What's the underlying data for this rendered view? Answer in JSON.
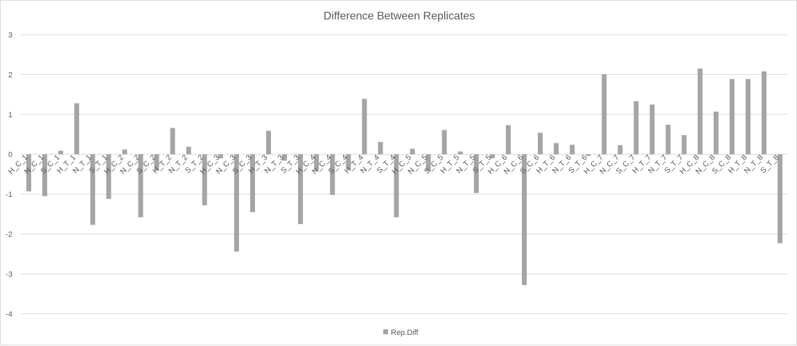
{
  "chart_data": {
    "type": "bar",
    "title": "Difference Between Replicates",
    "xlabel": "",
    "ylabel": "",
    "ylim": [
      -4,
      3
    ],
    "yticks": [
      3,
      2,
      1,
      0,
      -1,
      -2,
      -3,
      -4
    ],
    "grid": true,
    "legend_position": "bottom",
    "categories": [
      "H_C_1",
      "N_C_1",
      "S_C_1",
      "H_T_1",
      "N_T_1",
      "S_T_1",
      "H_C_2",
      "N_C_2",
      "S_C_2",
      "H_T_2",
      "N_T_2",
      "S_T_2",
      "H_C_3",
      "N_C_3",
      "S_C_3",
      "H_T_3",
      "N_T_3",
      "S_T_3",
      "H_C_4",
      "N_C_4",
      "S_C_4",
      "H_T_4",
      "N_T_4",
      "S_T_4",
      "H_C_5",
      "N_C_5",
      "S_C_5",
      "H_T_5",
      "N_T_5",
      "S_T_5",
      "H_C_6",
      "N_C_6",
      "S_C_6",
      "H_T_6",
      "N_T_6",
      "S_T_6",
      "H_C_7",
      "N_C_7",
      "S_C_7",
      "H_T_7",
      "N_T_7",
      "S_T_7",
      "H_C_8",
      "N_C_8",
      "S_C_8",
      "H_T_8",
      "N_T_8",
      "S_T_8"
    ],
    "series": [
      {
        "name": "Rep.Diff",
        "color": "#a5a5a5",
        "values": [
          -0.93,
          -1.05,
          0.09,
          1.28,
          -1.77,
          -1.12,
          0.12,
          -1.58,
          -0.4,
          0.66,
          0.19,
          -1.28,
          -0.1,
          -2.44,
          -1.45,
          0.59,
          -0.16,
          -1.75,
          -0.4,
          -1.02,
          -0.38,
          1.39,
          0.31,
          -1.58,
          0.14,
          -0.42,
          0.61,
          0.07,
          -0.97,
          -0.1,
          0.73,
          -3.28,
          0.54,
          0.28,
          0.24,
          -0.04,
          2.01,
          0.23,
          1.33,
          1.25,
          0.74,
          0.48,
          2.15,
          1.07,
          1.89,
          1.89,
          2.08,
          -2.23
        ]
      }
    ]
  }
}
